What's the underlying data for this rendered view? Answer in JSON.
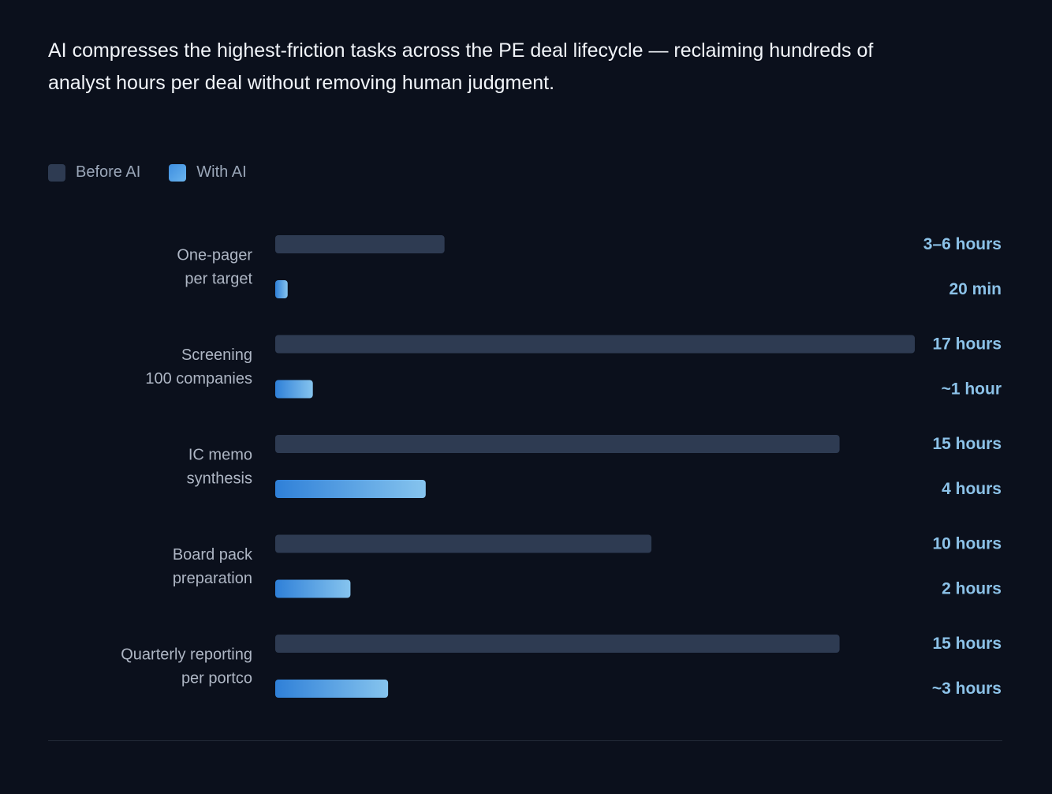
{
  "headline": "AI compresses the highest-friction tasks across the PE deal lifecycle — reclaiming hundreds of analyst hours per deal without removing human judgment.",
  "legend": {
    "before_label": "Before AI",
    "with_label": "With AI"
  },
  "colors": {
    "before": "#2e3b52",
    "with_start": "#2f80d8",
    "with_end": "#86c4ee",
    "value_text": "#8cc2e8",
    "category_text": "#aeb6c4"
  },
  "chart_data": {
    "type": "bar",
    "orientation": "horizontal",
    "unit": "hours",
    "xlim": [
      0,
      17
    ],
    "categories": [
      [
        "One-pager",
        "per target"
      ],
      [
        "Screening",
        "100 companies"
      ],
      [
        "IC memo",
        "synthesis"
      ],
      [
        "Board pack",
        "preparation"
      ],
      [
        "Quarterly reporting",
        "per portco"
      ]
    ],
    "series": [
      {
        "name": "Before AI",
        "values": [
          4.5,
          17,
          15,
          10,
          15
        ],
        "labels": [
          "3–6 hours",
          "17 hours",
          "15 hours",
          "10 hours",
          "15 hours"
        ]
      },
      {
        "name": "With AI",
        "values": [
          0.33,
          1,
          4,
          2,
          3
        ],
        "labels": [
          "20 min",
          "~1 hour",
          "4 hours",
          "2 hours",
          "~3 hours"
        ]
      }
    ]
  }
}
